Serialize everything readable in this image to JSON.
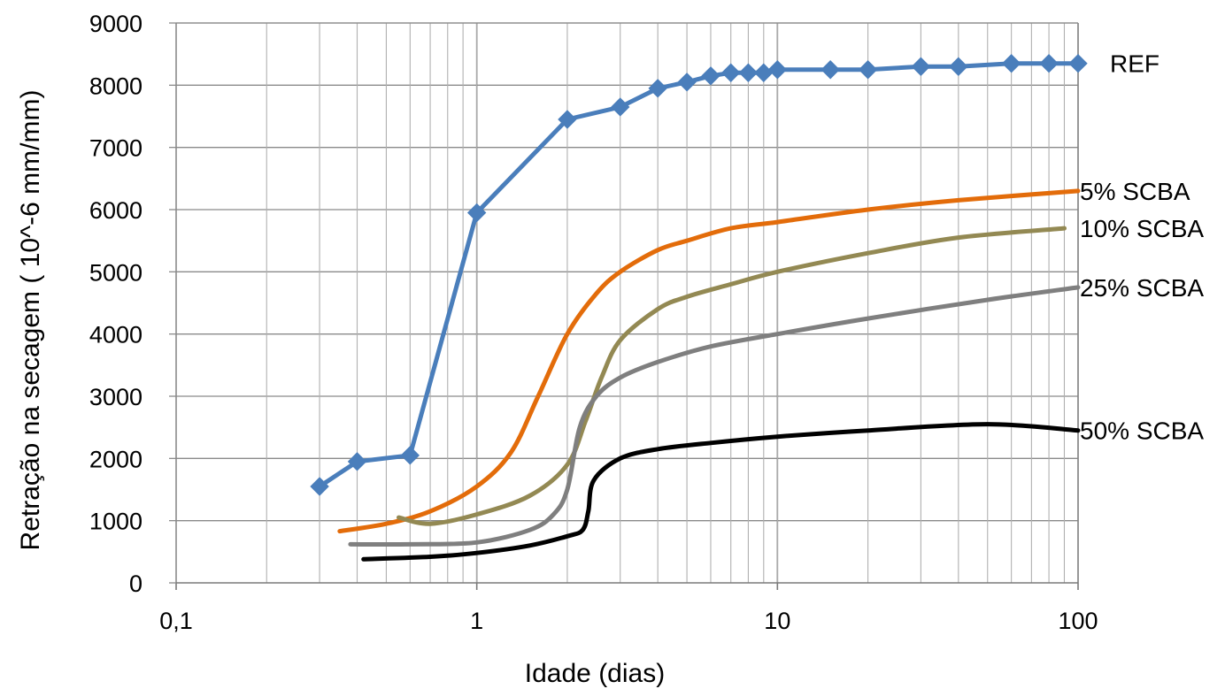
{
  "chart_data": {
    "type": "line",
    "xscale": "log",
    "xlim": [
      0.1,
      100
    ],
    "ylim": [
      0,
      9000
    ],
    "xlabel": "Idade (dias)",
    "ylabel": "Retração na secagem ( 10^-6 mm/mm)",
    "x_ticks": [
      "0,1",
      "1",
      "10",
      "100"
    ],
    "y_ticks": [
      "0",
      "1000",
      "2000",
      "3000",
      "4000",
      "5000",
      "6000",
      "7000",
      "8000",
      "9000"
    ],
    "grid": "on (major and minor, log x)",
    "series": [
      {
        "name": "REF",
        "color": "#4a7ebb",
        "marker": "diamond",
        "x": [
          0.3,
          0.4,
          0.6,
          1,
          2,
          3,
          4,
          5,
          6,
          7,
          8,
          9,
          10,
          15,
          20,
          30,
          40,
          60,
          80,
          100
        ],
        "y": [
          1550,
          1950,
          2050,
          5950,
          7450,
          7650,
          7950,
          8050,
          8150,
          8200,
          8200,
          8200,
          8250,
          8250,
          8250,
          8300,
          8300,
          8350,
          8350,
          8350
        ]
      },
      {
        "name": "5% SCBA",
        "color": "#e36c0a",
        "x": [
          0.35,
          0.5,
          0.7,
          1.0,
          1.3,
          1.6,
          2.0,
          2.5,
          3.0,
          4.0,
          5.0,
          7.0,
          10,
          20,
          40,
          100
        ],
        "y": [
          830,
          950,
          1150,
          1550,
          2100,
          3000,
          4000,
          4650,
          5000,
          5350,
          5500,
          5700,
          5800,
          6000,
          6150,
          6300
        ]
      },
      {
        "name": "10% SCBA",
        "color": "#938953",
        "x": [
          0.55,
          0.7,
          1.0,
          1.5,
          2.0,
          2.3,
          2.6,
          3.0,
          4.0,
          5.0,
          7.0,
          10,
          20,
          40,
          90
        ],
        "y": [
          1050,
          950,
          1100,
          1400,
          1900,
          2600,
          3300,
          3900,
          4400,
          4600,
          4800,
          5000,
          5300,
          5550,
          5700
        ]
      },
      {
        "name": "25% SCBA",
        "color": "#7f7f7f",
        "x": [
          0.38,
          0.6,
          1.0,
          1.5,
          1.8,
          2.0,
          2.2,
          2.5,
          3.0,
          4.0,
          6.0,
          10,
          20,
          50,
          100
        ],
        "y": [
          620,
          620,
          650,
          850,
          1100,
          1500,
          2500,
          3000,
          3300,
          3550,
          3800,
          4000,
          4250,
          4550,
          4750
        ]
      },
      {
        "name": "50% SCBA",
        "color": "#000000",
        "x": [
          0.42,
          0.7,
          1.0,
          1.5,
          2.0,
          2.25,
          2.35,
          2.45,
          3.0,
          4.0,
          6.0,
          10,
          20,
          50,
          100
        ],
        "y": [
          380,
          420,
          480,
          600,
          750,
          850,
          1150,
          1650,
          2000,
          2150,
          2250,
          2350,
          2450,
          2550,
          2450
        ]
      }
    ]
  }
}
